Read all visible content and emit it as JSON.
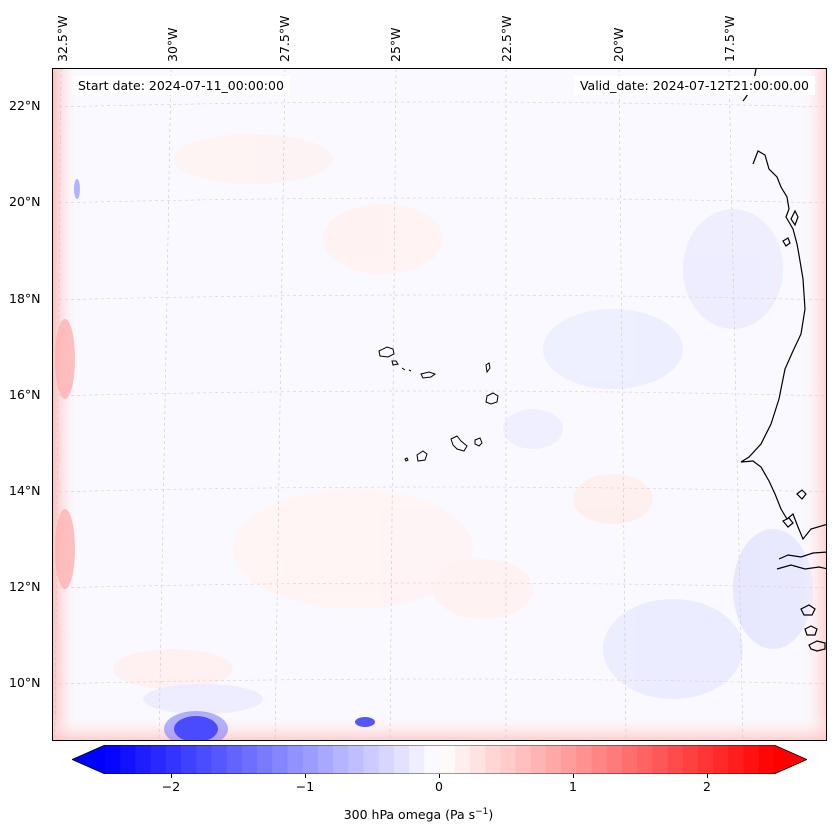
{
  "map": {
    "start_date": "Start date: 2024-07-11_00:00:00",
    "valid_date": "Valid_date: 2024-07-12T21:00:00.00",
    "longitude_labels": [
      "32.5°W",
      "30°W",
      "27.5°W",
      "25°W",
      "22.5°W",
      "20°W",
      "17.5°W"
    ],
    "latitude_labels": [
      "22°N",
      "20°N",
      "18°N",
      "16°N",
      "14°N",
      "12°N",
      "10°N"
    ],
    "extent": {
      "lon_min": -32.7,
      "lon_max": -15.6,
      "lat_min": 8.9,
      "lat_max": 22.7
    },
    "field": "300 hPa omega",
    "projection_gridlines": "dashed",
    "coastline_color": "#000000"
  },
  "colorbar": {
    "label_main": "300 hPa omega (Pa s",
    "label_exp": "−1",
    "label_close": ")",
    "ticks": [
      "−2",
      "−1",
      "0",
      "1",
      "2"
    ],
    "tick_values": [
      -2,
      -1,
      0,
      1,
      2
    ],
    "range": [
      -2.75,
      2.75
    ],
    "extend": "both",
    "colormap": "bwr",
    "colors": {
      "min": "#0000ff",
      "mid": "#ffffff",
      "max": "#ff0000"
    }
  }
}
